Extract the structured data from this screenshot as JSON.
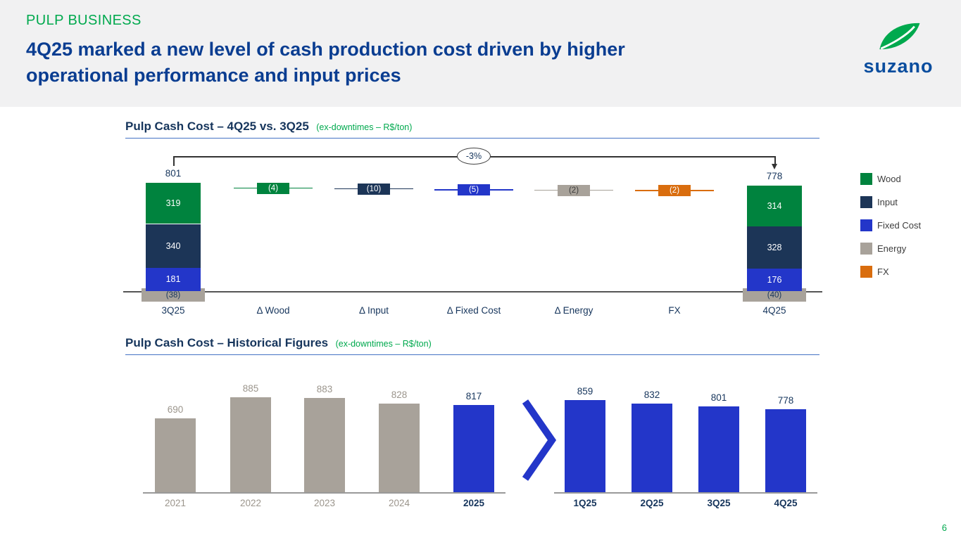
{
  "header": {
    "kicker": "PULP BUSINESS",
    "title_line1": "4Q25 marked a new level of cash production cost driven by higher",
    "title_line2": "operational performance and input prices",
    "logo_text": "suzano"
  },
  "page_number": "6",
  "colors": {
    "brand_green": "#00A94E",
    "title_blue": "#0A3D91",
    "wood_green": "#00833E",
    "input_navy": "#1C3557",
    "fixed_blue": "#2336C9",
    "energy_gray": "#A8A29A",
    "fx_orange": "#D96D0E",
    "label_gray": "#9B958C",
    "axis_dark": "#555555",
    "axis_navy": "#16355C"
  },
  "chart_data": [
    {
      "type": "waterfall",
      "title": "Pulp Cash Cost – 4Q25 vs. 3Q25",
      "subtitle": "(ex-downtimes – R$/ton)",
      "change_badge": "-3%",
      "legend": [
        {
          "label": "Wood",
          "color_key": "wood_green"
        },
        {
          "label": "Input",
          "color_key": "input_navy"
        },
        {
          "label": "Fixed Cost",
          "color_key": "fixed_blue"
        },
        {
          "label": "Energy",
          "color_key": "energy_gray"
        },
        {
          "label": "FX",
          "color_key": "fx_orange"
        }
      ],
      "start": {
        "label": "3Q25",
        "total": 801,
        "segments": [
          {
            "name": "Wood",
            "value": 319,
            "display": "319",
            "color_key": "wood_green"
          },
          {
            "name": "Input",
            "value": 340,
            "display": "340",
            "color_key": "input_navy"
          },
          {
            "name": "Fixed Cost",
            "value": 181,
            "display": "181",
            "color_key": "fixed_blue"
          },
          {
            "name": "Energy",
            "value": -38,
            "display": "(38)",
            "color_key": "energy_gray"
          }
        ]
      },
      "deltas": [
        {
          "label": "Δ Wood",
          "value": -4,
          "display": "(4)",
          "color_key": "wood_green"
        },
        {
          "label": "Δ Input",
          "value": -10,
          "display": "(10)",
          "color_key": "input_navy"
        },
        {
          "label": "Δ Fixed Cost",
          "value": -5,
          "display": "(5)",
          "color_key": "fixed_blue"
        },
        {
          "label": "Δ Energy",
          "value": -2,
          "display": "(2)",
          "color_key": "energy_gray"
        },
        {
          "label": "FX",
          "value": -2,
          "display": "(2)",
          "color_key": "fx_orange"
        }
      ],
      "end": {
        "label": "4Q25",
        "total": 778,
        "segments": [
          {
            "name": "Wood",
            "value": 314,
            "display": "314",
            "color_key": "wood_green"
          },
          {
            "name": "Input",
            "value": 328,
            "display": "328",
            "color_key": "input_navy"
          },
          {
            "name": "Fixed Cost",
            "value": 176,
            "display": "176",
            "color_key": "fixed_blue"
          },
          {
            "name": "Energy",
            "value": -40,
            "display": "(40)",
            "color_key": "energy_gray"
          }
        ]
      }
    },
    {
      "type": "bar",
      "title": "Pulp Cash Cost – Historical Figures",
      "subtitle": "(ex-downtimes – R$/ton)",
      "groups": [
        {
          "name": "annual",
          "categories": [
            "2021",
            "2022",
            "2023",
            "2024",
            "2025"
          ],
          "values": [
            690,
            885,
            883,
            828,
            817
          ],
          "highlight": [
            false,
            false,
            false,
            false,
            true
          ]
        },
        {
          "name": "quarterly",
          "categories": [
            "1Q25",
            "2Q25",
            "3Q25",
            "4Q25"
          ],
          "values": [
            859,
            832,
            801,
            778
          ],
          "highlight": [
            true,
            true,
            true,
            true
          ]
        }
      ]
    }
  ]
}
